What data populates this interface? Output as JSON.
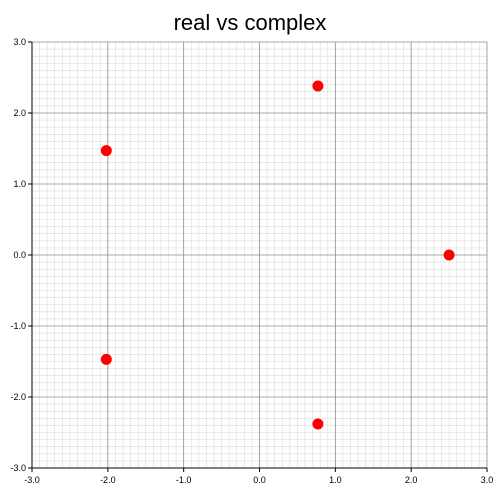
{
  "chart_data": {
    "type": "scatter",
    "title": "real vs complex",
    "xlabel": "",
    "ylabel": "",
    "xlim": [
      -3.0,
      3.0
    ],
    "ylim": [
      -3.0,
      3.0
    ],
    "x_ticks": [
      "-3.0",
      "-2.0",
      "-1.0",
      "0.0",
      "1.0",
      "2.0",
      "3.0"
    ],
    "y_ticks": [
      "3.0",
      "2.0",
      "1.0",
      "0.0",
      "-1.0",
      "-2.0",
      "-3.0"
    ],
    "grid": true,
    "marker_color": "#ff0000",
    "series": [
      {
        "points": [
          {
            "x": 2.5,
            "y": 0.0
          },
          {
            "x": 0.77,
            "y": 2.38
          },
          {
            "x": -2.02,
            "y": 1.47
          },
          {
            "x": -2.02,
            "y": -1.47
          },
          {
            "x": 0.77,
            "y": -2.38
          }
        ]
      }
    ]
  }
}
